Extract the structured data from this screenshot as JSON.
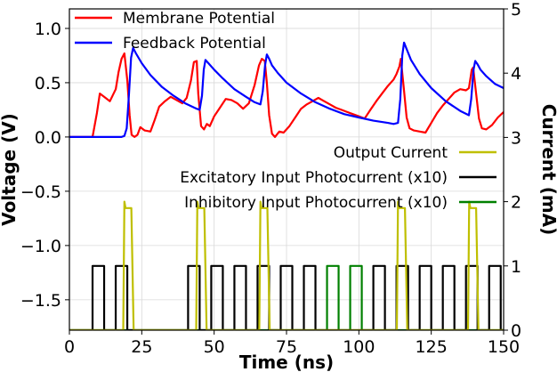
{
  "chart_data": {
    "type": "line",
    "xlabel": "Time (ns)",
    "ylabel_left": "Voltage (V)",
    "ylabel_right": "Current (mA)",
    "xlim": [
      0,
      150
    ],
    "ylim_left": [
      -1.78,
      1.18
    ],
    "ylim_right": [
      0,
      5
    ],
    "x_ticks": [
      0,
      25,
      50,
      75,
      100,
      125,
      150
    ],
    "y_left_ticks": [
      1.0,
      0.5,
      0.0,
      -0.5,
      -1.0,
      -1.5
    ],
    "y_left_tick_labels": [
      "1.0",
      "0.5",
      "0.0",
      "−0.5",
      "−1.0",
      "−1.5"
    ],
    "y_right_ticks": [
      0,
      1,
      2,
      3,
      4,
      5
    ],
    "grid": true,
    "legend_top": {
      "placement": "top-left",
      "entries": [
        {
          "name": "Membrane Potential",
          "color": "#ff0000"
        },
        {
          "name": "Feedback Potential",
          "color": "#0000ff"
        }
      ]
    },
    "legend_bottom": {
      "placement": "center-right",
      "entries": [
        {
          "name": "Output Current",
          "color": "#bfbf00"
        },
        {
          "name": "Excitatory Input Photocurrent (x10)",
          "color": "#000000"
        },
        {
          "name": "Inhibitory Input Photocurrent (x10)",
          "color": "#008000"
        }
      ]
    },
    "series": [
      {
        "name": "Membrane Potential",
        "axis": "left",
        "color": "#ff0000",
        "x": [
          0,
          8,
          9.5,
          10.5,
          12,
          14,
          16,
          17,
          18,
          19,
          20,
          20.8,
          21.5,
          22.5,
          23.5,
          24.5,
          26,
          28,
          29.5,
          31,
          33,
          35,
          37,
          39,
          40.5,
          42,
          43,
          44,
          44.5,
          45.5,
          46.5,
          47.5,
          48.5,
          50,
          52,
          54,
          56,
          58,
          60,
          62,
          64,
          65.5,
          66.5,
          67.5,
          68.2,
          69,
          70,
          71,
          72.5,
          74,
          76,
          78,
          80,
          82,
          84,
          86,
          88,
          90,
          92,
          94,
          96,
          98,
          100,
          102,
          104,
          106,
          108,
          110,
          112,
          113,
          114,
          114.5,
          115.5,
          116.5,
          117.5,
          119,
          121,
          123,
          125,
          127,
          129,
          131,
          133,
          135,
          137,
          138,
          139,
          139.5,
          140.5,
          141.5,
          142.5,
          144,
          146,
          148,
          150
        ],
        "y": [
          0,
          0,
          0.22,
          0.4,
          0.37,
          0.33,
          0.44,
          0.6,
          0.72,
          0.77,
          0.52,
          0.2,
          0.02,
          0,
          0.02,
          0.09,
          0.06,
          0.05,
          0.16,
          0.28,
          0.33,
          0.37,
          0.34,
          0.31,
          0.36,
          0.52,
          0.69,
          0.7,
          0.4,
          0.1,
          0.07,
          0.12,
          0.1,
          0.19,
          0.27,
          0.35,
          0.34,
          0.31,
          0.26,
          0.31,
          0.48,
          0.66,
          0.72,
          0.7,
          0.5,
          0.2,
          0.03,
          0,
          0.05,
          0.04,
          0.1,
          0.18,
          0.26,
          0.3,
          0.33,
          0.36,
          0.33,
          0.3,
          0.27,
          0.25,
          0.23,
          0.21,
          0.19,
          0.17,
          0.25,
          0.33,
          0.4,
          0.47,
          0.53,
          0.58,
          0.65,
          0.72,
          0.45,
          0.18,
          0.08,
          0.06,
          0.05,
          0.04,
          0.13,
          0.22,
          0.29,
          0.35,
          0.41,
          0.44,
          0.43,
          0.45,
          0.62,
          0.64,
          0.4,
          0.17,
          0.08,
          0.07,
          0.11,
          0.18,
          0.23
        ]
      },
      {
        "name": "Feedback Potential",
        "axis": "left",
        "color": "#0000ff",
        "x": [
          0,
          18,
          19,
          19.8,
          20.6,
          21.3,
          22,
          23,
          25,
          28,
          32,
          36,
          40,
          44,
          45,
          45.8,
          46.4,
          47,
          48,
          50,
          53,
          57,
          61,
          64,
          66,
          66.8,
          67.6,
          68.2,
          69,
          70,
          72,
          75,
          80,
          85,
          90,
          95,
          100,
          105,
          110,
          112,
          113.5,
          114.3,
          115,
          115.6,
          116.5,
          118,
          121,
          125,
          130,
          135,
          138,
          138.8,
          139.6,
          140.2,
          141,
          142,
          144,
          147,
          150
        ],
        "y": [
          0,
          0,
          0.01,
          0.08,
          0.4,
          0.73,
          0.82,
          0.77,
          0.68,
          0.57,
          0.46,
          0.38,
          0.31,
          0.26,
          0.25,
          0.38,
          0.62,
          0.71,
          0.68,
          0.62,
          0.54,
          0.44,
          0.37,
          0.32,
          0.3,
          0.42,
          0.66,
          0.76,
          0.72,
          0.66,
          0.59,
          0.5,
          0.4,
          0.32,
          0.26,
          0.21,
          0.18,
          0.15,
          0.13,
          0.12,
          0.13,
          0.35,
          0.75,
          0.87,
          0.81,
          0.71,
          0.58,
          0.45,
          0.33,
          0.24,
          0.2,
          0.35,
          0.62,
          0.7,
          0.67,
          0.62,
          0.56,
          0.49,
          0.45
        ]
      },
      {
        "name": "Output Current",
        "axis": "right",
        "color": "#bfbf00",
        "x": [
          0,
          18.6,
          19,
          19.4,
          21.4,
          22.2,
          150
        ],
        "y": [
          0,
          0,
          2.0,
          1.9,
          1.9,
          0,
          0
        ],
        "pulse_starts": [
          18.6,
          43.8,
          65.6,
          113.1,
          137.7
        ]
      },
      {
        "name": "Excitatory Input Photocurrent (x10)",
        "axis": "right",
        "color": "#000000",
        "pulses": [
          [
            8,
            12
          ],
          [
            16,
            20
          ],
          [
            41,
            45
          ],
          [
            49,
            53
          ],
          [
            57,
            61
          ],
          [
            65,
            69
          ],
          [
            73,
            77
          ],
          [
            81,
            85
          ],
          [
            105,
            109
          ],
          [
            113,
            117
          ],
          [
            121,
            125
          ],
          [
            129,
            133
          ],
          [
            137,
            141
          ],
          [
            145,
            149
          ]
        ],
        "level": 1
      },
      {
        "name": "Inhibitory Input Photocurrent (x10)",
        "axis": "right",
        "color": "#008000",
        "pulses": [
          [
            89,
            93
          ],
          [
            97,
            101
          ]
        ],
        "level": 1
      }
    ]
  }
}
